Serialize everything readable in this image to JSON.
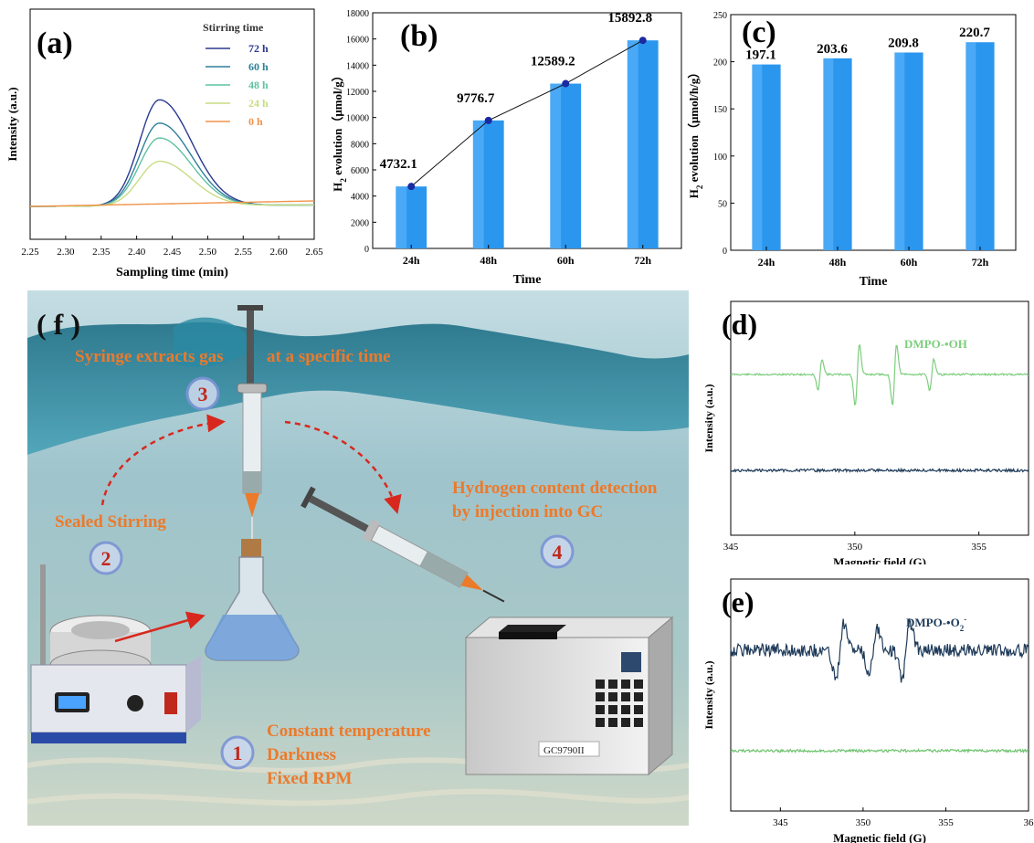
{
  "chart_data": [
    {
      "panel": "(a)",
      "type": "line",
      "xlabel": "Sampling time (min)",
      "ylabel": "Intensity (a.u.)",
      "xlim": [
        2.25,
        2.65
      ],
      "xticks": [
        "2.25",
        "2.30",
        "2.35",
        "2.40",
        "2.45",
        "2.50",
        "2.55",
        "2.60",
        "2.65"
      ],
      "legend_title": "Stirring time",
      "legend_position": "top-right",
      "series": [
        {
          "name": "72 h",
          "color": "#2b3a8f",
          "peak": 1.0
        },
        {
          "name": "60 h",
          "color": "#2e7f9a",
          "peak": 0.78
        },
        {
          "name": "48 h",
          "color": "#5fc2a3",
          "peak": 0.64
        },
        {
          "name": "24 h",
          "color": "#c8dc84",
          "peak": 0.42
        },
        {
          "name": "0 h",
          "color": "#f0924a",
          "peak": 0.0
        }
      ],
      "peak_x": 2.432
    },
    {
      "panel": "(b)",
      "type": "bar",
      "xlabel": "Time",
      "ylabel": "H2 evolution（μmol/g）",
      "ylim": [
        0,
        18000
      ],
      "yticks": [
        "0",
        "2000",
        "4000",
        "6000",
        "8000",
        "10000",
        "12000",
        "14000",
        "16000",
        "18000"
      ],
      "categories": [
        "24h",
        "48h",
        "60h",
        "72h"
      ],
      "values": [
        4732.1,
        9776.7,
        12589.2,
        15892.8
      ],
      "labels": [
        "4732.1",
        "9776.7",
        "12589.2",
        "15892.8"
      ],
      "bar_color": "#2b96ee",
      "line_color": "#1a2aa0"
    },
    {
      "panel": "(c)",
      "type": "bar",
      "xlabel": "Time",
      "ylabel": "H2 evolution（μmol/h/g）",
      "ylim": [
        0,
        250
      ],
      "yticks": [
        "0",
        "50",
        "100",
        "150",
        "200",
        "250"
      ],
      "categories": [
        "24h",
        "48h",
        "60h",
        "72h"
      ],
      "values": [
        197.1,
        203.6,
        209.8,
        220.7
      ],
      "labels": [
        "197.1",
        "203.6",
        "209.8",
        "220.7"
      ],
      "bar_color": "#2b96ee"
    },
    {
      "panel": "(d)",
      "type": "line",
      "xlabel": "Magnetic field (G)",
      "ylabel": "Intensity (a.u.)",
      "xlim": [
        345,
        357
      ],
      "xticks": [
        "345",
        "350",
        "355"
      ],
      "series_label": "DMPO-•OH",
      "colors": {
        "signal": "#7dce7d",
        "baseline": "#1f3b5a"
      }
    },
    {
      "panel": "(e)",
      "type": "line",
      "xlabel": "Magnetic field (G)",
      "ylabel": "Intensity (a.u.)",
      "xlim": [
        342,
        360
      ],
      "xticks": [
        "345",
        "350",
        "355",
        "36"
      ],
      "series_label": "DMPO-•O2-",
      "colors": {
        "signal": "#1f3b5a",
        "baseline": "#6fc46f"
      }
    }
  ],
  "panel_f": {
    "label": "( f )",
    "step1": {
      "num": "1",
      "lines": [
        "Constant temperature",
        "Darkness",
        "Fixed RPM"
      ]
    },
    "step2": {
      "num": "2",
      "text": "Sealed Stirring"
    },
    "step3": {
      "num": "3",
      "text": "Syringe extracts gas",
      "text2": "at a specific time"
    },
    "step4": {
      "num": "4",
      "line1": "Hydrogen content detection",
      "line2": "by injection into GC"
    },
    "gc_label": "GC9790II",
    "colors": {
      "orange": "#ec7a2b",
      "water": "#2c8aa8",
      "num": "#c0281c"
    }
  }
}
